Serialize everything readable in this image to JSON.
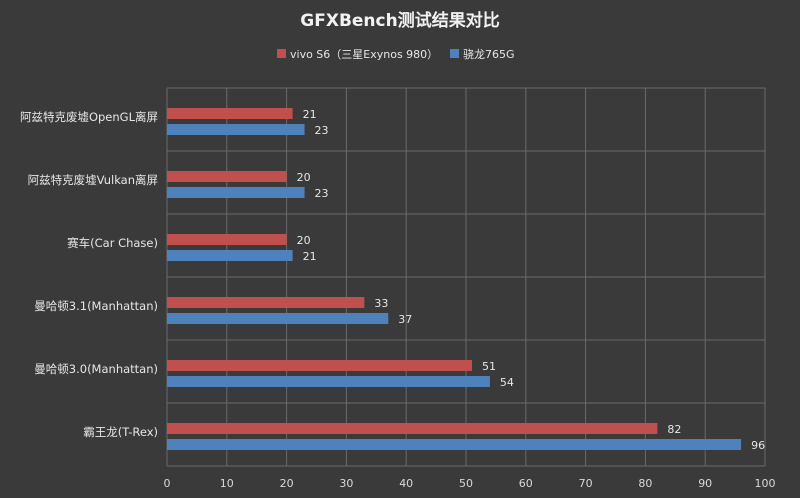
{
  "chart_data": {
    "type": "bar",
    "orientation": "horizontal",
    "title": "GFXBench测试结果对比",
    "legend_position": "top",
    "grid": true,
    "xlim": [
      0,
      100
    ],
    "ticks": [
      0,
      10,
      20,
      30,
      40,
      50,
      60,
      70,
      80,
      90,
      100
    ],
    "categories": [
      "阿兹特克废墟OpenGL离屏",
      "阿兹特克废墟Vulkan离屏",
      "赛车(Car Chase)",
      "曼哈顿3.1(Manhattan)",
      "曼哈顿3.0(Manhattan)",
      "霸王龙(T-Rex)"
    ],
    "series": [
      {
        "name": "vivo S6（三星Exynos 980）",
        "color": "#c0504d",
        "values": [
          21,
          20,
          20,
          33,
          51,
          82
        ]
      },
      {
        "name": "骁龙765G",
        "color": "#4f81bd",
        "values": [
          23,
          23,
          21,
          37,
          54,
          96
        ]
      }
    ]
  }
}
